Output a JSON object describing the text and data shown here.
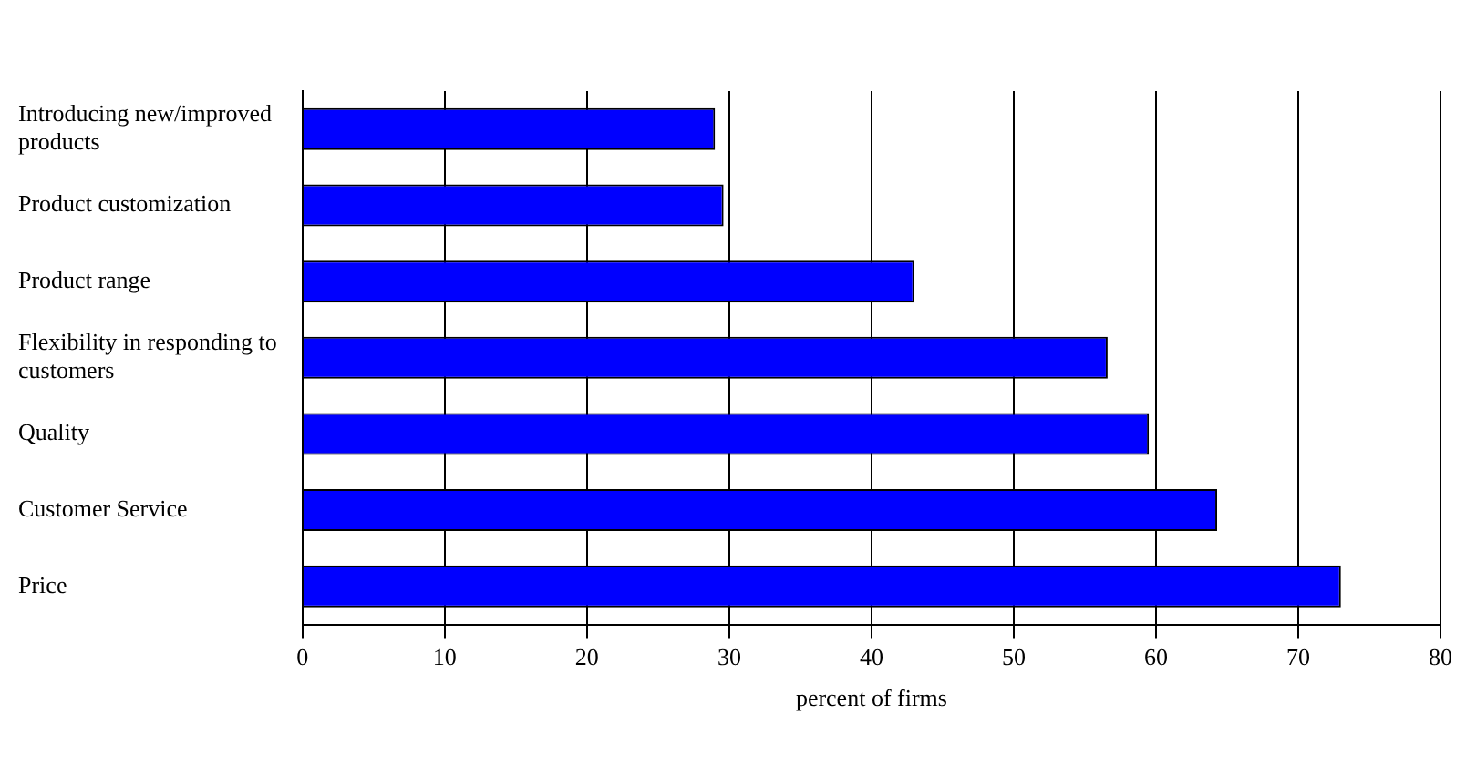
{
  "chart_data": {
    "type": "bar",
    "orientation": "horizontal",
    "categories": [
      "Introducing new/improved products",
      "Product customization",
      "Product range",
      "Flexibility in responding to customers",
      "Quality",
      "Customer Service",
      "Price"
    ],
    "values": [
      29,
      29.6,
      43,
      56.6,
      59.5,
      64.3,
      73
    ],
    "color": "#0000ff",
    "xlabel": "percent of firms",
    "xlim": [
      0,
      80
    ],
    "xticks": [
      0,
      10,
      20,
      30,
      40,
      50,
      60,
      70,
      80
    ],
    "grid": "x",
    "legend": false
  }
}
